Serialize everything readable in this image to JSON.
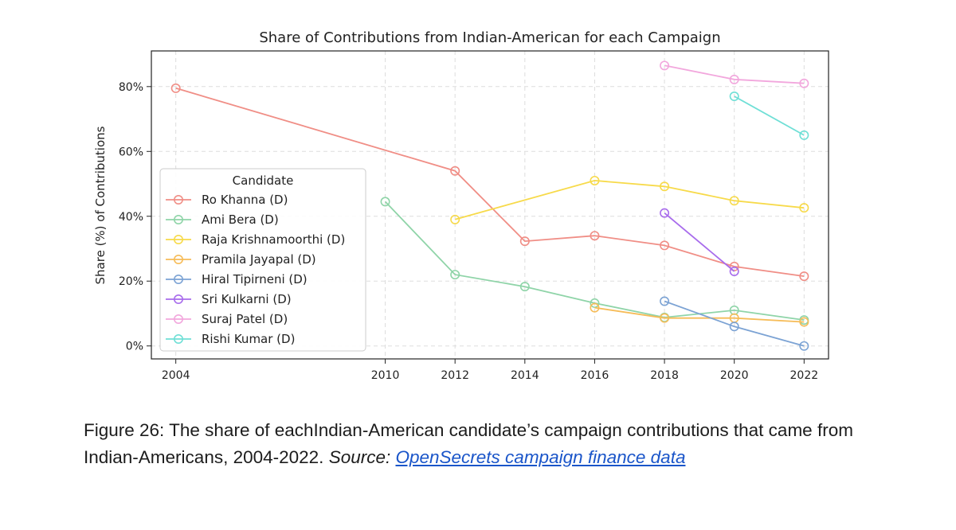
{
  "chart_data": {
    "type": "line",
    "title": "Share of Contributions from Indian-American for each Campaign",
    "xlabel": "",
    "ylabel": "Share (%) of Contributions",
    "xlim": [
      2003.3,
      2022.7
    ],
    "ylim": [
      -4,
      91
    ],
    "xticks": [
      2004,
      2010,
      2012,
      2014,
      2016,
      2018,
      2020,
      2022
    ],
    "yticks": [
      0,
      20,
      40,
      60,
      80
    ],
    "ytick_labels": [
      "0%",
      "20%",
      "40%",
      "60%",
      "80%"
    ],
    "grid": true,
    "legend": {
      "title": "Candidate",
      "placement": "center-left"
    },
    "series": [
      {
        "name": "Ro Khanna (D)",
        "color": "#f08e86",
        "points": [
          [
            2004,
            79.5
          ],
          [
            2012,
            54
          ],
          [
            2014,
            32.3
          ],
          [
            2016,
            34
          ],
          [
            2018,
            31
          ],
          [
            2020,
            24.5
          ],
          [
            2022,
            21.5
          ]
        ]
      },
      {
        "name": "Ami Bera (D)",
        "color": "#8fd4a8",
        "points": [
          [
            2010,
            44.5
          ],
          [
            2012,
            22
          ],
          [
            2014,
            18.3
          ],
          [
            2016,
            13.2
          ],
          [
            2018,
            8.8
          ],
          [
            2020,
            11
          ],
          [
            2022,
            8
          ]
        ]
      },
      {
        "name": "Raja Krishnamoorthi (D)",
        "color": "#f7da4a",
        "points": [
          [
            2012,
            39
          ],
          [
            2016,
            51
          ],
          [
            2018,
            49.2
          ],
          [
            2020,
            44.8
          ],
          [
            2022,
            42.6
          ]
        ]
      },
      {
        "name": "Pramila Jayapal (D)",
        "color": "#f6bc58",
        "points": [
          [
            2016,
            11.8
          ],
          [
            2018,
            8.6
          ],
          [
            2020,
            8.6
          ],
          [
            2022,
            7.4
          ]
        ]
      },
      {
        "name": "Hiral Tipirneni (D)",
        "color": "#7ca3d4",
        "points": [
          [
            2018,
            13.8
          ],
          [
            2020,
            6
          ],
          [
            2022,
            0
          ]
        ]
      },
      {
        "name": "Sri Kulkarni (D)",
        "color": "#a86cec",
        "points": [
          [
            2018,
            41
          ],
          [
            2020,
            23
          ]
        ]
      },
      {
        "name": "Suraj Patel (D)",
        "color": "#f2a7dd",
        "points": [
          [
            2018,
            86.5
          ],
          [
            2020,
            82.2
          ],
          [
            2022,
            81
          ]
        ]
      },
      {
        "name": "Rishi Kumar (D)",
        "color": "#6fdfd6",
        "points": [
          [
            2020,
            77
          ],
          [
            2022,
            65
          ]
        ]
      }
    ]
  },
  "caption": {
    "text": "Figure 26: The share of eachIndian-American candidate’s campaign contributions that came from Indian-Americans, 2004-2022. ",
    "source_label": "Source: ",
    "source_link": "OpenSecrets campaign finance data"
  }
}
